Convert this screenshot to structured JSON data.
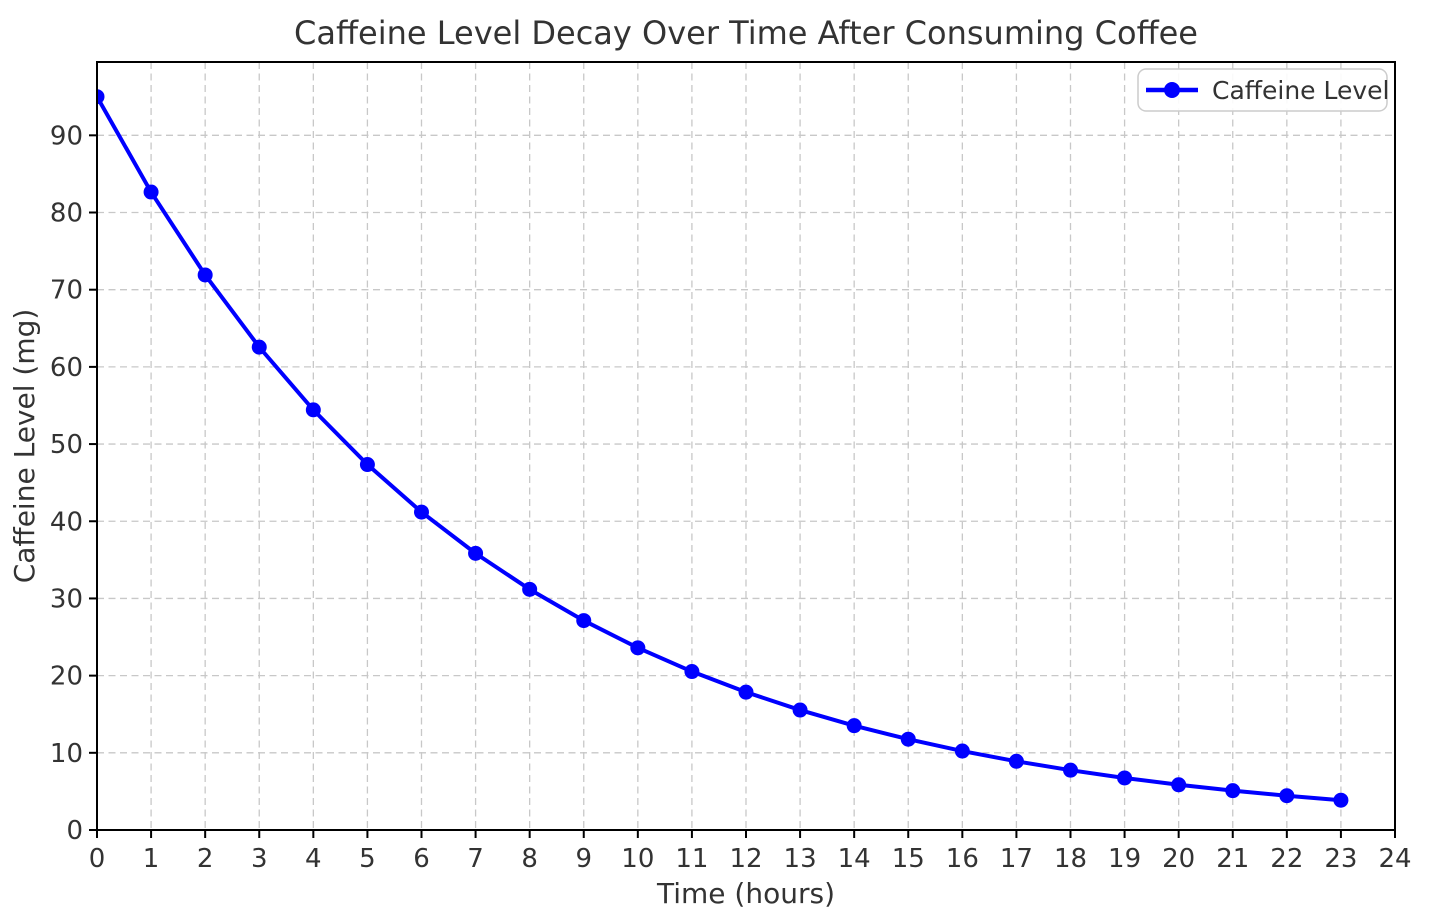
{
  "chart_data": {
    "type": "line",
    "title": "Caffeine Level Decay Over Time After Consuming Coffee",
    "xlabel": "Time (hours)",
    "ylabel": "Caffeine Level (mg)",
    "x": [
      0,
      1,
      2,
      3,
      4,
      5,
      6,
      7,
      8,
      9,
      10,
      11,
      12,
      13,
      14,
      15,
      16,
      17,
      18,
      19,
      20,
      21,
      22,
      23
    ],
    "series": [
      {
        "name": "Caffeine Level",
        "values": [
          95.0,
          82.65,
          71.91,
          62.56,
          54.43,
          47.35,
          41.19,
          35.84,
          31.18,
          27.13,
          23.6,
          20.53,
          17.86,
          15.54,
          13.52,
          11.76,
          10.23,
          8.9,
          7.75,
          6.74,
          5.86,
          5.1,
          4.44,
          3.86
        ],
        "color": "#0000ff",
        "marker": "circle"
      }
    ],
    "xlim": [
      0,
      24
    ],
    "ylim": [
      0,
      99.5
    ],
    "x_ticks": [
      0,
      1,
      2,
      3,
      4,
      5,
      6,
      7,
      8,
      9,
      10,
      11,
      12,
      13,
      14,
      15,
      16,
      17,
      18,
      19,
      20,
      21,
      22,
      23,
      24
    ],
    "y_ticks": [
      0,
      10,
      20,
      30,
      40,
      50,
      60,
      70,
      80,
      90
    ],
    "grid": true,
    "grid_style": "dashed",
    "legend_position": "upper right"
  },
  "colors": {
    "line": "#0000ff",
    "grid": "#c8c8c8",
    "axis": "#000000",
    "text": "#333333",
    "background": "#ffffff",
    "legend_border": "#cccccc",
    "legend_background": "#ffffff"
  }
}
